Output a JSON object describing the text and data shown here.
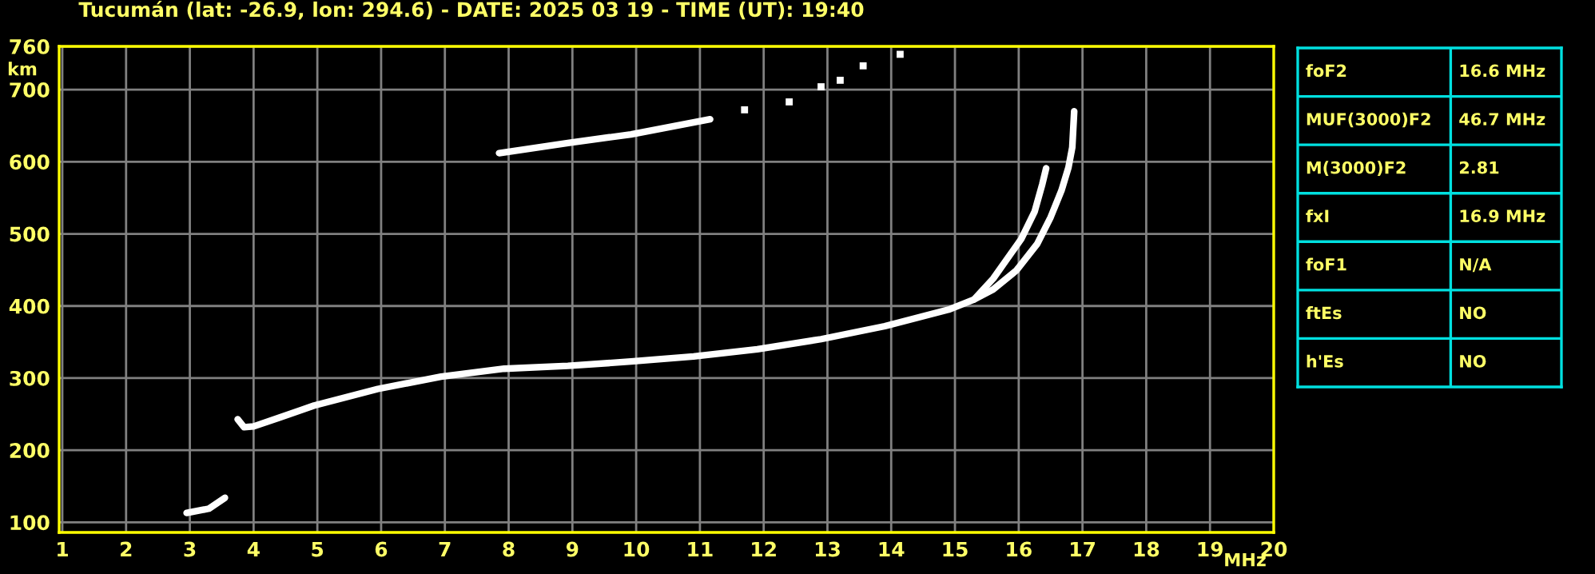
{
  "chart_data": [
    {
      "type": "line",
      "title": "Tucumán (lat: -26.9, lon: 294.6) - DATE: 2025 03 19 - TIME (UT): 19:40",
      "xlabel": "MHz",
      "ylabel": "km",
      "xlim": [
        0.95,
        20
      ],
      "ylim": [
        86,
        760
      ],
      "xticks": [
        1,
        2,
        3,
        4,
        5,
        6,
        7,
        8,
        9,
        10,
        11,
        12,
        13,
        14,
        15,
        16,
        17,
        18,
        19,
        20
      ],
      "yticks": [
        100,
        200,
        300,
        400,
        500,
        600,
        700,
        760
      ],
      "grid": true,
      "legend": false,
      "marker": "none",
      "line_style": "solid",
      "series": [
        {
          "type": "line",
          "color": "#ffffff",
          "x": [
            3.75,
            3.85,
            4.0,
            4.4,
            4.95,
            5.95,
            6.94,
            7.93,
            8.93,
            9.92,
            10.9,
            11.9,
            12.9,
            13.9,
            14.9,
            15.3,
            15.6,
            16.04,
            16.25,
            16.37,
            16.43
          ],
          "values": [
            243,
            232,
            233,
            245,
            262,
            285,
            302,
            313,
            317,
            323,
            330,
            340,
            354,
            372,
            395,
            409,
            438,
            493,
            531,
            569,
            591
          ]
        },
        {
          "type": "line",
          "color": "#ffffff",
          "x": [
            15.3,
            15.6,
            15.96,
            16.29,
            16.5,
            16.67,
            16.78,
            16.84,
            16.87
          ],
          "values": [
            409,
            423,
            449,
            486,
            523,
            560,
            592,
            620,
            670
          ]
        },
        {
          "type": "line",
          "color": "#ffffff",
          "x": [
            2.95,
            3.3,
            3.55
          ],
          "values": [
            113,
            119,
            134
          ]
        },
        {
          "type": "line",
          "color": "#ffffff",
          "x": [
            7.85,
            8.93,
            9.92,
            11.16
          ],
          "values": [
            612,
            626,
            638,
            659
          ]
        },
        {
          "type": "scatter",
          "marker": "square",
          "color": "#ffffff",
          "x": [
            11.7,
            12.4,
            12.9,
            13.2,
            13.56,
            14.14
          ],
          "values": [
            672,
            683,
            704,
            713,
            733,
            749
          ]
        }
      ]
    },
    {
      "type": "other",
      "annotations": [
        "foF2",
        "16.6 MHz",
        "MUF(3000)F2",
        "46.7 MHz",
        "M(3000)F2",
        "2.81",
        "fxI",
        "16.9 MHz",
        "foF1",
        "N/A",
        "ftEs",
        "NO",
        "h'Es",
        "NO"
      ]
    }
  ]
}
